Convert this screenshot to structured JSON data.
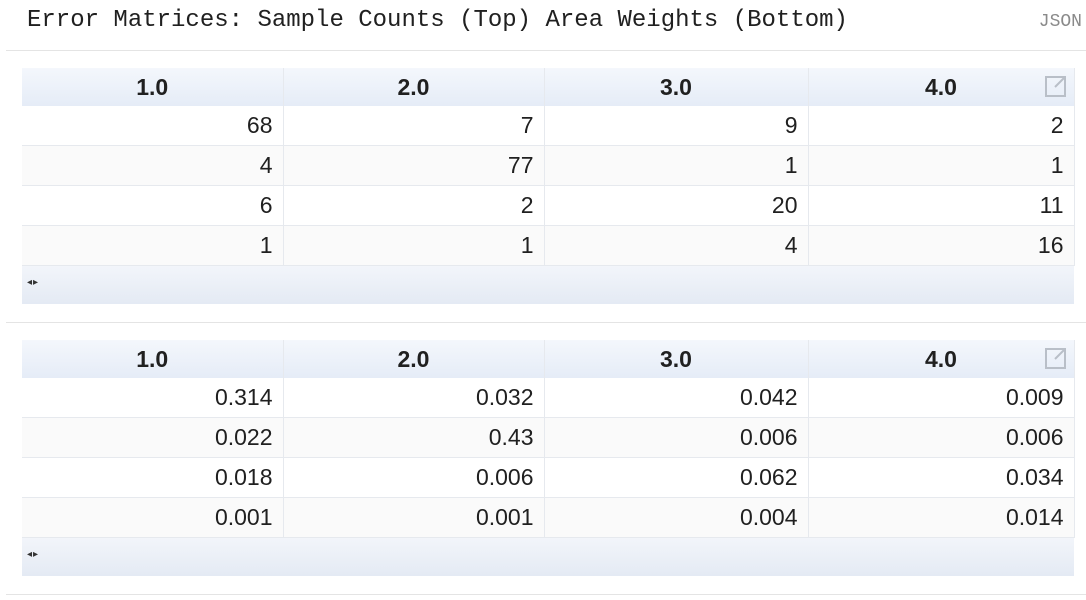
{
  "console": {
    "title": "Error Matrices: Sample Counts (Top) Area Weights (Bottom)",
    "json_link": "JSON"
  },
  "tables": [
    {
      "headers": [
        "1.0",
        "2.0",
        "3.0",
        "4.0"
      ],
      "rows": [
        [
          "68",
          "7",
          "9",
          "2"
        ],
        [
          "4",
          "77",
          "1",
          "1"
        ],
        [
          "6",
          "2",
          "20",
          "11"
        ],
        [
          "1",
          "1",
          "4",
          "16"
        ]
      ],
      "popout_icon": "popout-icon",
      "scroll_arrows": "◂▸"
    },
    {
      "headers": [
        "1.0",
        "2.0",
        "3.0",
        "4.0"
      ],
      "rows": [
        [
          "0.314",
          "0.032",
          "0.042",
          "0.009"
        ],
        [
          "0.022",
          "0.43",
          "0.006",
          "0.006"
        ],
        [
          "0.018",
          "0.006",
          "0.062",
          "0.034"
        ],
        [
          "0.001",
          "0.001",
          "0.004",
          "0.014"
        ]
      ],
      "popout_icon": "popout-icon",
      "scroll_arrows": "◂▸"
    }
  ]
}
